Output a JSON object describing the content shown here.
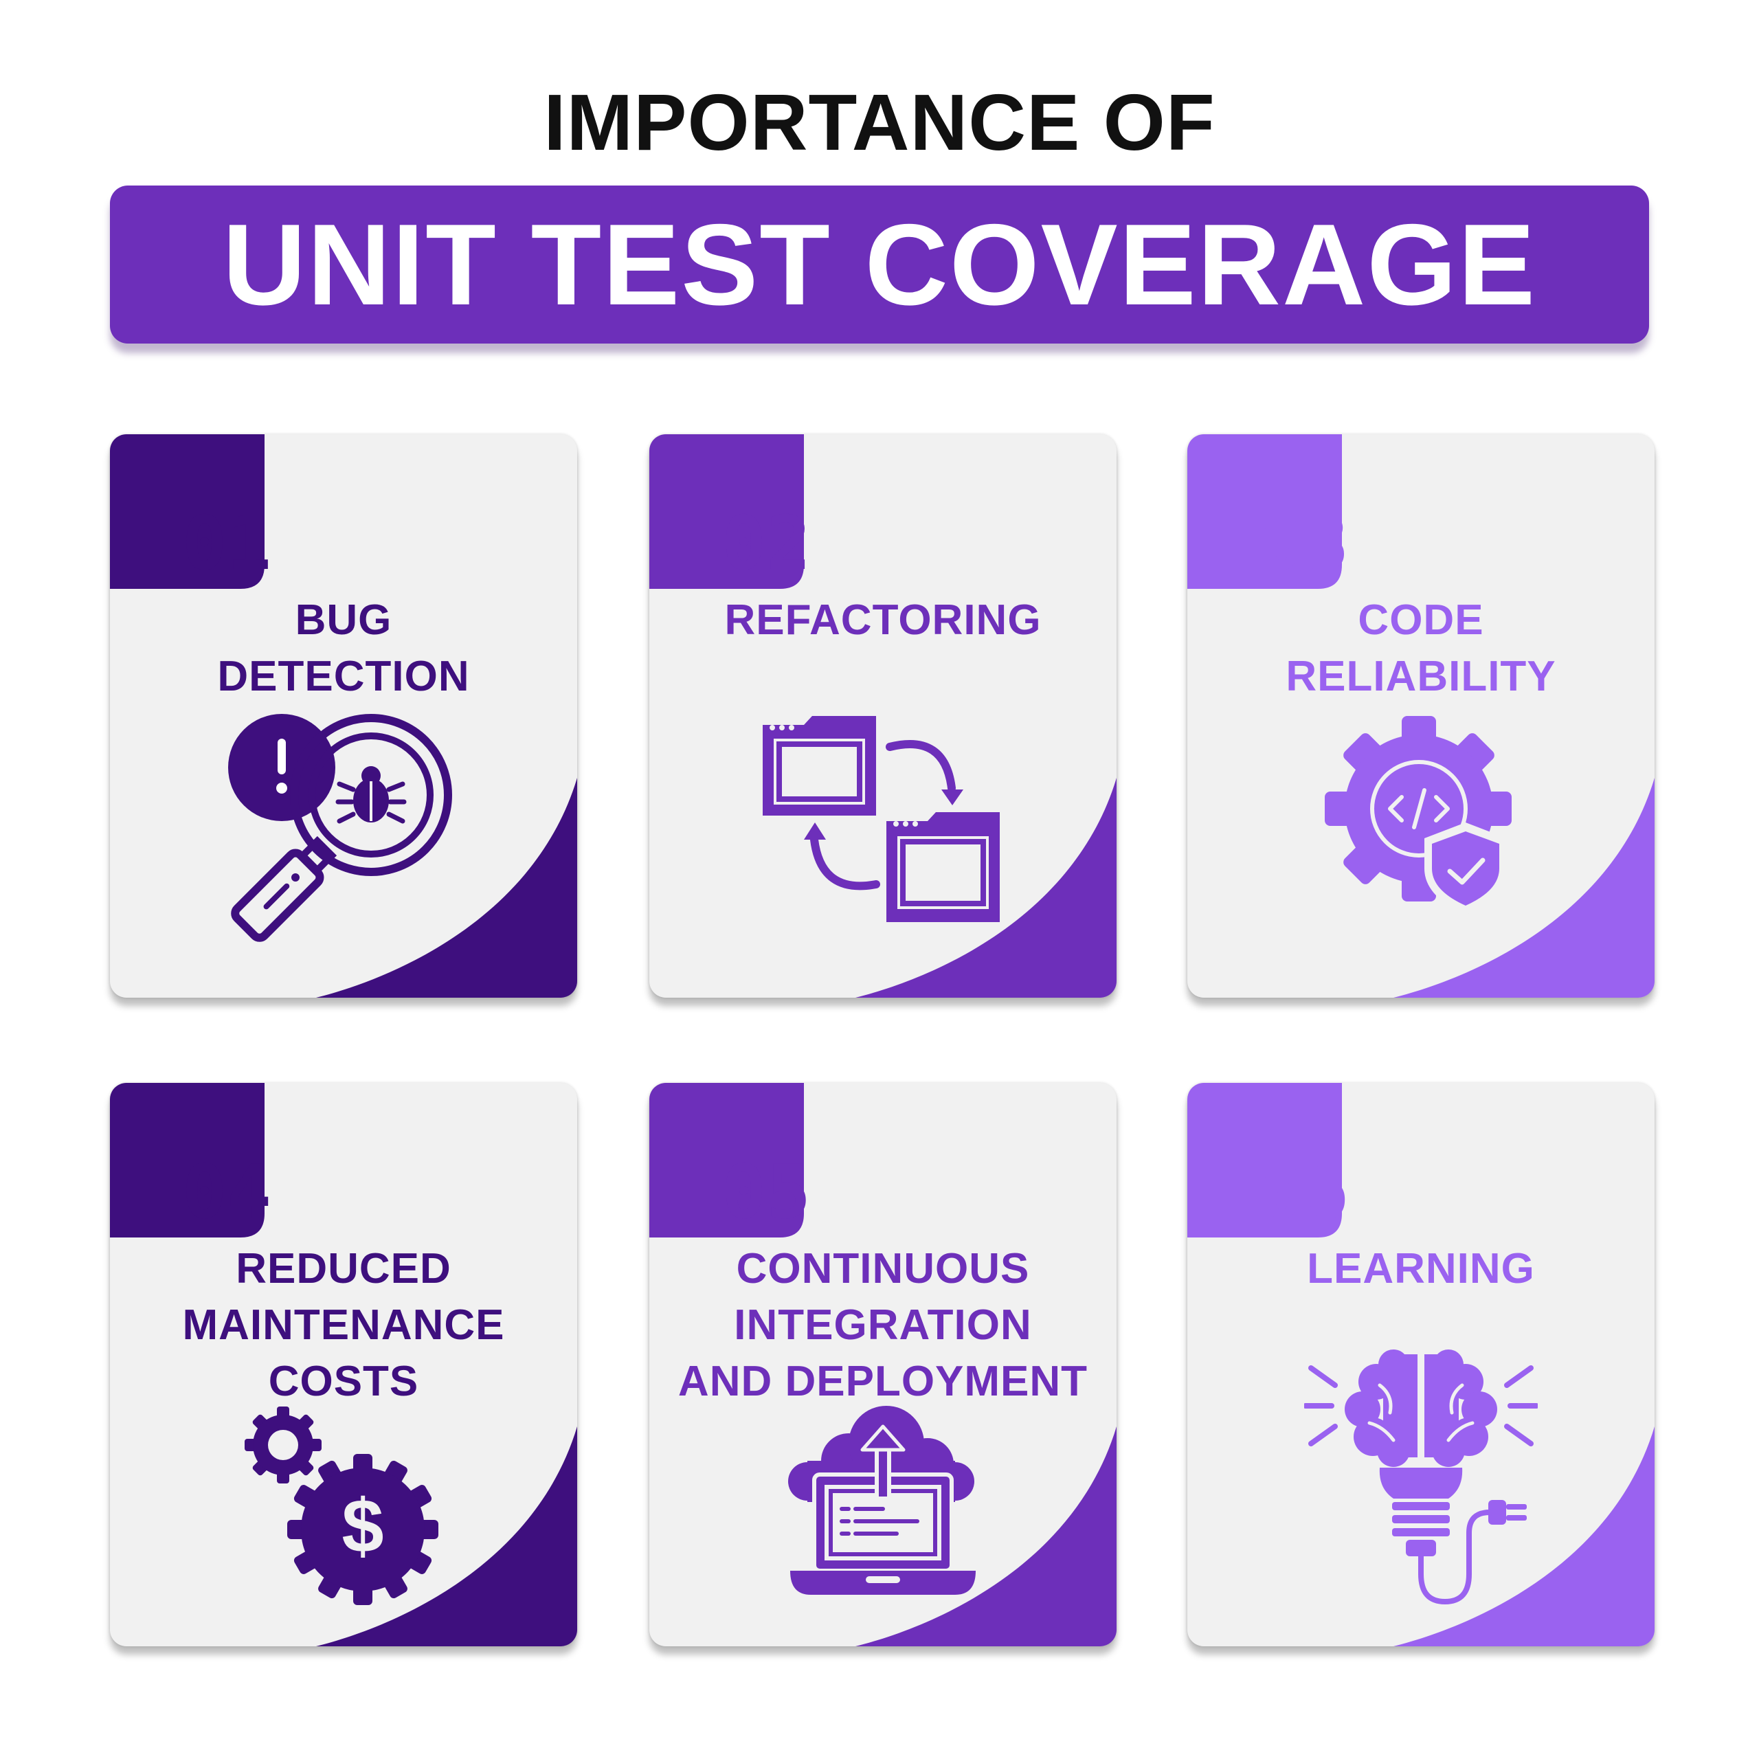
{
  "heading": "IMPORTANCE OF",
  "banner": "UNIT TEST COVERAGE",
  "colors": {
    "banner": "#6d2fba",
    "dark": "#3e0f7e",
    "mid": "#6d2fba",
    "light": "#9a62f0",
    "card": "#f1f1f1"
  },
  "cards": [
    {
      "number": "01",
      "title": [
        "BUG",
        "DETECTION"
      ],
      "icon": "bug-magnifier-icon"
    },
    {
      "number": "02",
      "title": [
        "REFACTORING"
      ],
      "icon": "refactor-windows-icon"
    },
    {
      "number": "03",
      "title": [
        "CODE",
        "RELIABILITY"
      ],
      "icon": "gear-code-shield-icon"
    },
    {
      "number": "04",
      "title": [
        "REDUCED",
        "MAINTENANCE",
        "COSTS"
      ],
      "icon": "gears-dollar-icon"
    },
    {
      "number": "05",
      "title": [
        "CONTINUOUS",
        "INTEGRATION",
        "AND DEPLOYMENT"
      ],
      "icon": "laptop-cloud-upload-icon"
    },
    {
      "number": "06",
      "title": [
        "LEARNING"
      ],
      "icon": "brain-bulb-icon"
    }
  ]
}
